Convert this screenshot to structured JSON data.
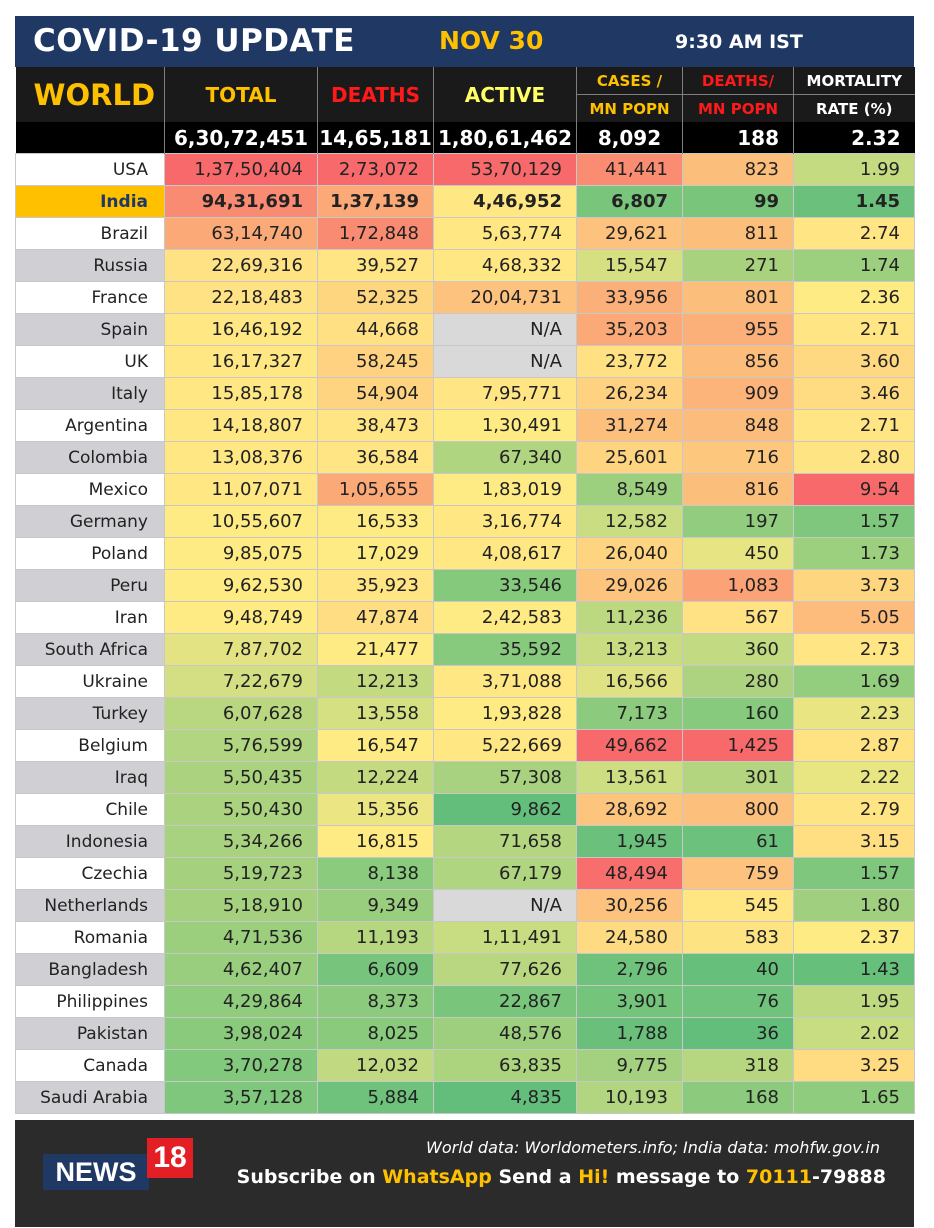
{
  "header": {
    "title": "COVID-19 UPDATE",
    "date": "NOV 30",
    "time": "9:30 AM IST"
  },
  "columns": {
    "world": "WORLD",
    "total": "TOTAL",
    "deaths": "DEATHS",
    "active": "ACTIVE",
    "cases_per_mn_line1": "CASES /",
    "cases_per_mn_line2": "MN POPN",
    "deaths_per_mn_line1": "DEATHS/",
    "deaths_per_mn_line2": "MN POPN",
    "mortality_line1": "MORTALITY",
    "mortality_line2": "RATE (%)"
  },
  "world_totals": {
    "total": "6,30,72,451",
    "deaths": "14,65,181",
    "active": "1,80,61,462",
    "cases_per_mn": "8,092",
    "deaths_per_mn": "188",
    "mortality": "2.32"
  },
  "colors": {
    "header_bg": "#1f3864",
    "accent_yellow": "#ffc000",
    "deaths_red": "#ff1a1a",
    "scale_red": "#f8696b",
    "scale_orange": "#fbaa77",
    "scale_yellow": "#ffeb84",
    "scale_green": "#63be7b",
    "na_gray": "#d9d9d9"
  },
  "rows": [
    {
      "country": "USA",
      "total": "1,37,50,404",
      "deaths": "2,73,072",
      "active": "53,70,129",
      "cases_per_mn": "41,441",
      "deaths_per_mn": "823",
      "mortality": "1.99",
      "bg": [
        "#f8696b",
        "#f8696b",
        "#f8696b",
        "#fa8c72",
        "#fcbe7b",
        "#c5db81"
      ]
    },
    {
      "country": "India",
      "total": "94,31,691",
      "deaths": "1,37,139",
      "active": "4,46,952",
      "cases_per_mn": "6,807",
      "deaths_per_mn": "99",
      "mortality": "1.45",
      "highlight": true,
      "bg": [
        "#f98b73",
        "#fbaa77",
        "#ffe884",
        "#7ac57c",
        "#7ac57c",
        "#6bc17c"
      ]
    },
    {
      "country": "Brazil",
      "total": "63,14,740",
      "deaths": "1,72,848",
      "active": "5,63,774",
      "cases_per_mn": "29,621",
      "deaths_per_mn": "811",
      "mortality": "2.74",
      "bg": [
        "#fbaa77",
        "#f98b73",
        "#ffe884",
        "#fdc27d",
        "#fcbe7b",
        "#ffe583"
      ]
    },
    {
      "country": "Russia",
      "total": "22,69,316",
      "deaths": "39,527",
      "active": "4,68,332",
      "cases_per_mn": "15,547",
      "deaths_per_mn": "271",
      "mortality": "1.74",
      "bg": [
        "#ffe283",
        "#ffe583",
        "#ffe884",
        "#d6e082",
        "#a9d27f",
        "#9ccf7e"
      ]
    },
    {
      "country": "France",
      "total": "22,18,483",
      "deaths": "52,325",
      "active": "20,04,731",
      "cases_per_mn": "33,956",
      "deaths_per_mn": "801",
      "mortality": "2.36",
      "bg": [
        "#ffe283",
        "#fed680",
        "#fdc27d",
        "#fcb079",
        "#fcbe7b",
        "#ffeb84"
      ]
    },
    {
      "country": "Spain",
      "total": "16,46,192",
      "deaths": "44,668",
      "active": "N/A",
      "cases_per_mn": "35,203",
      "deaths_per_mn": "955",
      "mortality": "2.71",
      "bg": [
        "#ffe884",
        "#ffe083",
        "#d9d9d9",
        "#fbaa77",
        "#fcb079",
        "#ffe583"
      ]
    },
    {
      "country": "UK",
      "total": "16,17,327",
      "deaths": "58,245",
      "active": "N/A",
      "cases_per_mn": "23,772",
      "deaths_per_mn": "856",
      "mortality": "3.60",
      "bg": [
        "#ffe884",
        "#fed280",
        "#d9d9d9",
        "#ffe083",
        "#fcbc7b",
        "#ffd981"
      ]
    },
    {
      "country": "Italy",
      "total": "15,85,178",
      "deaths": "54,904",
      "active": "7,95,771",
      "cases_per_mn": "26,234",
      "deaths_per_mn": "909",
      "mortality": "3.46",
      "bg": [
        "#ffe884",
        "#fed480",
        "#ffe583",
        "#fed280",
        "#fcb47a",
        "#ffdb82"
      ]
    },
    {
      "country": "Argentina",
      "total": "14,18,807",
      "deaths": "38,473",
      "active": "1,30,491",
      "cases_per_mn": "31,274",
      "deaths_per_mn": "848",
      "mortality": "2.71",
      "bg": [
        "#ffe884",
        "#ffe583",
        "#ffeb84",
        "#fdc07c",
        "#fcbc7b",
        "#ffe583"
      ]
    },
    {
      "country": "Colombia",
      "total": "13,08,376",
      "deaths": "36,584",
      "active": "67,340",
      "cases_per_mn": "25,601",
      "deaths_per_mn": "716",
      "mortality": "2.80",
      "bg": [
        "#ffe884",
        "#ffe583",
        "#b0d580",
        "#fed480",
        "#fdc87e",
        "#ffe483"
      ]
    },
    {
      "country": "Mexico",
      "total": "11,07,071",
      "deaths": "1,05,655",
      "active": "1,83,019",
      "cases_per_mn": "8,549",
      "deaths_per_mn": "816",
      "mortality": "9.54",
      "bg": [
        "#ffe884",
        "#fbaa77",
        "#ffeb84",
        "#9ccf7e",
        "#fcbe7b",
        "#f8696b"
      ]
    },
    {
      "country": "Germany",
      "total": "10,55,607",
      "deaths": "16,533",
      "active": "3,16,774",
      "cases_per_mn": "12,582",
      "deaths_per_mn": "197",
      "mortality": "1.57",
      "bg": [
        "#ffeb84",
        "#ffeb84",
        "#ffe884",
        "#cadd82",
        "#92cc7e",
        "#7ec77c"
      ]
    },
    {
      "country": "Poland",
      "total": "9,85,075",
      "deaths": "17,029",
      "active": "4,08,617",
      "cases_per_mn": "26,040",
      "deaths_per_mn": "450",
      "mortality": "1.73",
      "bg": [
        "#ffeb84",
        "#ffeb84",
        "#ffe884",
        "#fed480",
        "#e6e483",
        "#9ccf7e"
      ]
    },
    {
      "country": "Peru",
      "total": "9,62,530",
      "deaths": "35,923",
      "active": "33,546",
      "cases_per_mn": "29,026",
      "deaths_per_mn": "1,083",
      "mortality": "3.73",
      "bg": [
        "#ffeb84",
        "#ffe583",
        "#85c97d",
        "#fdc47d",
        "#fba276",
        "#ffd680"
      ]
    },
    {
      "country": "Iran",
      "total": "9,48,749",
      "deaths": "47,874",
      "active": "2,42,583",
      "cases_per_mn": "11,236",
      "deaths_per_mn": "567",
      "mortality": "5.05",
      "bg": [
        "#ffeb84",
        "#ffdd82",
        "#ffeb84",
        "#bcd881",
        "#ffe283",
        "#fdbc7b"
      ]
    },
    {
      "country": "South Africa",
      "total": "7,87,702",
      "deaths": "21,477",
      "active": "35,592",
      "cases_per_mn": "13,213",
      "deaths_per_mn": "360",
      "mortality": "2.73",
      "bg": [
        "#e3e383",
        "#ffeb84",
        "#87ca7d",
        "#c9dc82",
        "#c2da81",
        "#ffe583"
      ]
    },
    {
      "country": "Ukraine",
      "total": "7,22,679",
      "deaths": "12,213",
      "active": "3,71,088",
      "cases_per_mn": "16,566",
      "deaths_per_mn": "280",
      "mortality": "1.69",
      "bg": [
        "#d3df82",
        "#c4da81",
        "#ffe884",
        "#dfe283",
        "#add380",
        "#93cd7e"
      ]
    },
    {
      "country": "Turkey",
      "total": "6,07,628",
      "deaths": "13,558",
      "active": "1,93,828",
      "cases_per_mn": "7,173",
      "deaths_per_mn": "160",
      "mortality": "2.23",
      "bg": [
        "#b9d780",
        "#d4e082",
        "#ffeb84",
        "#8ccb7d",
        "#87ca7d",
        "#e9e583"
      ]
    },
    {
      "country": "Belgium",
      "total": "5,76,599",
      "deaths": "16,547",
      "active": "5,22,669",
      "cases_per_mn": "49,662",
      "deaths_per_mn": "1,425",
      "mortality": "2.87",
      "bg": [
        "#b1d580",
        "#ffeb84",
        "#ffe884",
        "#f8696b",
        "#f8696b",
        "#ffe383"
      ]
    },
    {
      "country": "Iraq",
      "total": "5,50,435",
      "deaths": "12,224",
      "active": "57,308",
      "cases_per_mn": "13,561",
      "deaths_per_mn": "301",
      "mortality": "2.22",
      "bg": [
        "#abd37f",
        "#c4da81",
        "#a8d27f",
        "#cddd82",
        "#b3d580",
        "#e8e583"
      ]
    },
    {
      "country": "Chile",
      "total": "5,50,430",
      "deaths": "15,356",
      "active": "9,862",
      "cases_per_mn": "28,692",
      "deaths_per_mn": "800",
      "mortality": "2.79",
      "bg": [
        "#abd37f",
        "#ebe683",
        "#63be7b",
        "#fdc47d",
        "#fcc07c",
        "#ffe483"
      ]
    },
    {
      "country": "Indonesia",
      "total": "5,34,266",
      "deaths": "16,815",
      "active": "71,658",
      "cases_per_mn": "1,945",
      "deaths_per_mn": "61",
      "mortality": "3.15",
      "bg": [
        "#a8d27f",
        "#ffeb84",
        "#b4d680",
        "#6bc17c",
        "#6cc17c",
        "#ffdf82"
      ]
    },
    {
      "country": "Czechia",
      "total": "5,19,723",
      "deaths": "8,138",
      "active": "67,179",
      "cases_per_mn": "48,494",
      "deaths_per_mn": "759",
      "mortality": "1.57",
      "bg": [
        "#a5d17f",
        "#8acb7d",
        "#b0d580",
        "#f86e6c",
        "#fdc27d",
        "#7ec77c"
      ]
    },
    {
      "country": "Netherlands",
      "total": "5,18,910",
      "deaths": "9,349",
      "active": "N/A",
      "cases_per_mn": "30,256",
      "deaths_per_mn": "545",
      "mortality": "1.80",
      "bg": [
        "#a5d17f",
        "#98ce7e",
        "#d9d9d9",
        "#fdc27d",
        "#ffe683",
        "#a0d07f"
      ]
    },
    {
      "country": "Romania",
      "total": "4,71,536",
      "deaths": "11,193",
      "active": "1,11,491",
      "cases_per_mn": "24,580",
      "deaths_per_mn": "583",
      "mortality": "2.37",
      "bg": [
        "#9bcf7e",
        "#b6d680",
        "#c8dc81",
        "#fedb82",
        "#fee383",
        "#ffeb84"
      ]
    },
    {
      "country": "Bangladesh",
      "total": "4,62,407",
      "deaths": "6,609",
      "active": "77,626",
      "cases_per_mn": "2,796",
      "deaths_per_mn": "40",
      "mortality": "1.43",
      "bg": [
        "#98ce7e",
        "#77c57c",
        "#b8d780",
        "#6fc27c",
        "#66bf7b",
        "#66bf7b"
      ]
    },
    {
      "country": "Philippines",
      "total": "4,29,864",
      "deaths": "8,373",
      "active": "22,867",
      "cases_per_mn": "3,901",
      "deaths_per_mn": "76",
      "mortality": "1.95",
      "bg": [
        "#90cc7e",
        "#8ccb7d",
        "#7ac57c",
        "#74c47c",
        "#70c37c",
        "#bfd981"
      ]
    },
    {
      "country": "Pakistan",
      "total": "3,98,024",
      "deaths": "8,025",
      "active": "48,576",
      "cases_per_mn": "1,788",
      "deaths_per_mn": "36",
      "mortality": "2.02",
      "bg": [
        "#89ca7d",
        "#89ca7d",
        "#9dcf7e",
        "#6ac07b",
        "#64be7b",
        "#c8dc81"
      ]
    },
    {
      "country": "Canada",
      "total": "3,70,278",
      "deaths": "12,032",
      "active": "63,835",
      "cases_per_mn": "9,775",
      "deaths_per_mn": "318",
      "mortality": "3.25",
      "bg": [
        "#82c87d",
        "#c1d981",
        "#acd47f",
        "#a4d17f",
        "#b7d680",
        "#ffdc82"
      ]
    },
    {
      "country": "Saudi Arabia",
      "total": "3,57,128",
      "deaths": "5,884",
      "active": "4,835",
      "cases_per_mn": "10,193",
      "deaths_per_mn": "168",
      "mortality": "1.65",
      "bg": [
        "#7ec77c",
        "#6ec27c",
        "#63be7b",
        "#b1d580",
        "#8ccb7d",
        "#8fcc7e"
      ]
    }
  ],
  "footer": {
    "source": "World data: Worldometers.info; India data: mohfw.gov.in",
    "sub_part1": "Subscribe on ",
    "sub_whatsapp": "WhatsApp",
    "sub_part2": " Send a ",
    "sub_hi": "Hi!",
    "sub_part3": " message to ",
    "sub_number": "70111",
    "sub_number_rest": "-79888",
    "logo_news": "NEWS",
    "logo_num": "18"
  }
}
